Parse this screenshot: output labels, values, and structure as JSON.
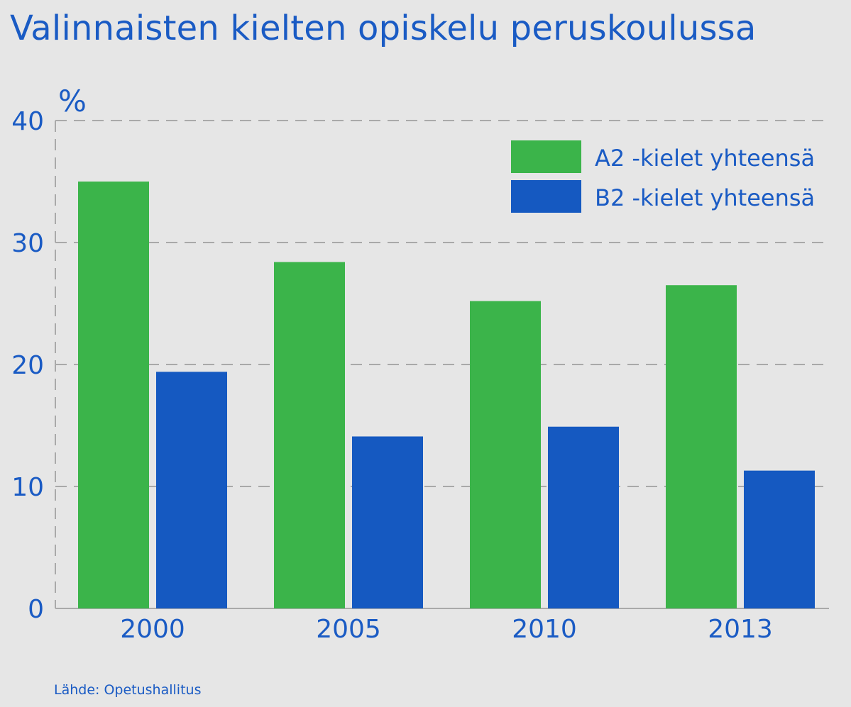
{
  "title": "Valinnaisten kielten opiskelu peruskoulussa",
  "source": "Lähde: Opetushallitus",
  "chart_data": {
    "type": "bar",
    "title": "Valinnaisten kielten opiskelu peruskoulussa",
    "xlabel": "",
    "ylabel": "%",
    "ylim": [
      0,
      40
    ],
    "yticks": [
      0,
      10,
      20,
      30,
      40
    ],
    "grid": true,
    "legend_position": "top-right",
    "categories": [
      "2000",
      "2005",
      "2010",
      "2013"
    ],
    "series": [
      {
        "name": "A2 -kielet yhteensä",
        "color": "#3bb44a",
        "values": [
          35.0,
          28.4,
          25.2,
          26.5
        ]
      },
      {
        "name": "B2 -kielet yhteensä",
        "color": "#1559c1",
        "values": [
          19.4,
          14.1,
          14.9,
          11.3
        ]
      }
    ]
  }
}
